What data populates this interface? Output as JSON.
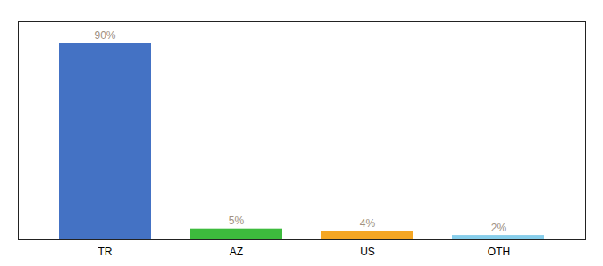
{
  "chart_data": {
    "type": "bar",
    "categories": [
      "TR",
      "AZ",
      "US",
      "OTH"
    ],
    "values": [
      90,
      5,
      4,
      2
    ],
    "value_labels": [
      "90%",
      "5%",
      "4%",
      "2%"
    ],
    "colors": [
      "#4472c4",
      "#3dbb3d",
      "#f5a623",
      "#87ceeb"
    ],
    "ylim": [
      0,
      100
    ],
    "data_labels": true,
    "tick_labels": "x",
    "grid": false
  }
}
